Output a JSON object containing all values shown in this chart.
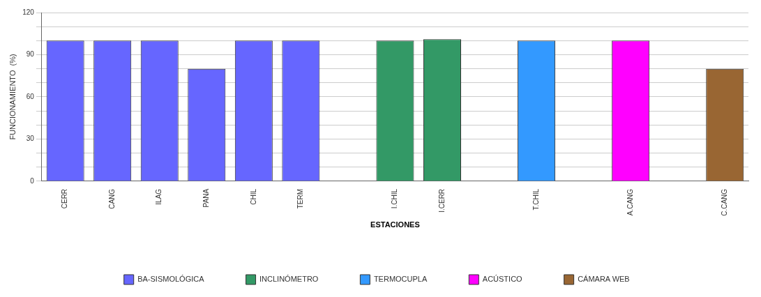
{
  "chart_data": {
    "type": "bar",
    "xlabel": "ESTACIONES",
    "ylabel": "FUNCIONAMIENTO  (%)",
    "categories": [
      "CERR",
      "CANG",
      "ILAG",
      "PANA",
      "CHIL",
      "TERM",
      null,
      "I.CHIL",
      "I.CERR",
      null,
      "T.CHIL",
      null,
      "A.CANG",
      null,
      "C.CANG"
    ],
    "series": [
      {
        "name": "BA-SISMOLÓGICA",
        "color": "#6666ff",
        "values": [
          100,
          100,
          100,
          80,
          100,
          100,
          null,
          null,
          null,
          null,
          null,
          null,
          null,
          null,
          null
        ]
      },
      {
        "name": "INCLINÓMETRO",
        "color": "#339966",
        "values": [
          null,
          null,
          null,
          null,
          null,
          null,
          null,
          100,
          101,
          null,
          null,
          null,
          null,
          null,
          null
        ]
      },
      {
        "name": "TERMOCUPLA",
        "color": "#3399ff",
        "values": [
          null,
          null,
          null,
          null,
          null,
          null,
          null,
          null,
          null,
          null,
          100,
          null,
          null,
          null,
          null
        ]
      },
      {
        "name": "ACÚSTICO",
        "color": "#ff00ff",
        "values": [
          null,
          null,
          null,
          null,
          null,
          null,
          null,
          null,
          null,
          null,
          null,
          null,
          100,
          null,
          null
        ]
      },
      {
        "name": "CÁMARA WEB",
        "color": "#996633",
        "values": [
          null,
          null,
          null,
          null,
          null,
          null,
          null,
          null,
          null,
          null,
          null,
          null,
          null,
          null,
          80
        ]
      }
    ],
    "ylim": [
      0,
      120
    ],
    "yticks": [
      0,
      {
        "value": 10,
        "label": null
      },
      {
        "value": 20,
        "label": null
      },
      30,
      {
        "value": 40,
        "label": null
      },
      {
        "value": 50,
        "label": null
      },
      60,
      {
        "value": 70,
        "label": null
      },
      {
        "value": 80,
        "label": null
      },
      90,
      {
        "value": 100,
        "label": null
      },
      {
        "value": 110,
        "label": null
      },
      120
    ],
    "grid": "y",
    "legend": "bottom"
  }
}
